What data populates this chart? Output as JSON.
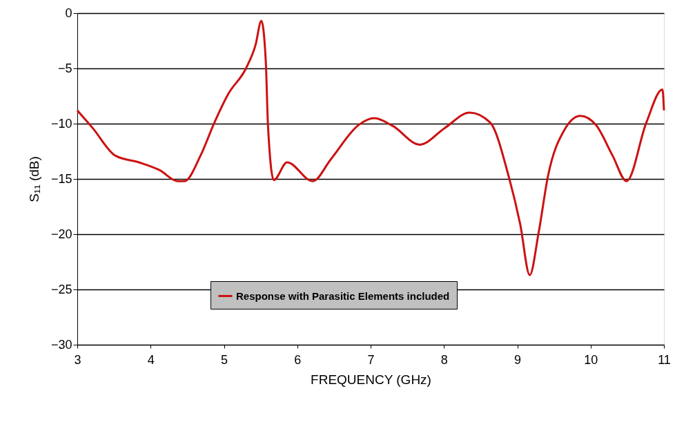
{
  "chart_data": {
    "type": "line",
    "xlabel": "FREQUENCY (GHz)",
    "ylabel": "S₁₁ (dB)",
    "xlim": [
      3,
      11
    ],
    "xticks": [
      3,
      4,
      5,
      6,
      7,
      8,
      9,
      10,
      11
    ],
    "ylim": [
      -30,
      0
    ],
    "yticks": [
      -30,
      -25,
      -20,
      -15,
      -10,
      -5,
      0
    ],
    "grid": "y",
    "legend": "bottom",
    "marker": "none",
    "line_style": "solid",
    "series": [
      {
        "name": "Response with Parasitic Elements included",
        "color": "#cc1111",
        "x": [
          3.0,
          3.21,
          3.52,
          3.84,
          4.12,
          4.37,
          4.46,
          4.68,
          4.87,
          5.06,
          5.3,
          5.43,
          5.51,
          5.57,
          5.6,
          5.68,
          5.86,
          6.21,
          6.46,
          6.84,
          7.05,
          7.3,
          7.67,
          8.01,
          8.35,
          8.63,
          8.88,
          9.04,
          9.17,
          9.29,
          9.42,
          9.64,
          9.86,
          10.07,
          10.3,
          10.49,
          10.76,
          10.98,
          11.0
        ],
        "values": [
          -8.8,
          -10.4,
          -12.9,
          -13.5,
          -14.2,
          -15.2,
          -15.2,
          -12.9,
          -9.9,
          -7.3,
          -5.0,
          -2.9,
          -0.7,
          -4.3,
          -10.1,
          -15.1,
          -13.5,
          -15.2,
          -13.2,
          -10.1,
          -9.5,
          -10.2,
          -11.9,
          -10.4,
          -9.0,
          -9.9,
          -14.7,
          -19.1,
          -23.7,
          -19.9,
          -14.7,
          -10.6,
          -9.3,
          -10.1,
          -12.9,
          -15.2,
          -9.9,
          -6.9,
          -8.8
        ]
      }
    ]
  }
}
